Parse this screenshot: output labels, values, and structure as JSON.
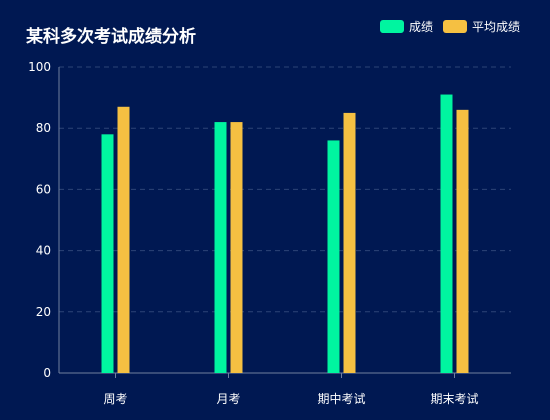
{
  "chart_data": {
    "type": "bar",
    "title": "某科多次考试成绩分析",
    "categories": [
      "周考",
      "月考",
      "期中考试",
      "期末考试"
    ],
    "series": [
      {
        "name": "成绩",
        "values": [
          78,
          82,
          76,
          91
        ],
        "color": "#00f5a0"
      },
      {
        "name": "平均成绩",
        "values": [
          87,
          82,
          85,
          86
        ],
        "color": "#f5c042"
      }
    ],
    "ylim": [
      0,
      100
    ],
    "yticks": [
      0,
      20,
      40,
      60,
      80,
      100
    ],
    "xlabel": "",
    "ylabel": "",
    "grid": true,
    "legend_position": "top-right"
  },
  "colors": {
    "background": "#001852",
    "axis": "#6f7f9f",
    "grid": "#2d4477",
    "text": "#ffffff"
  }
}
